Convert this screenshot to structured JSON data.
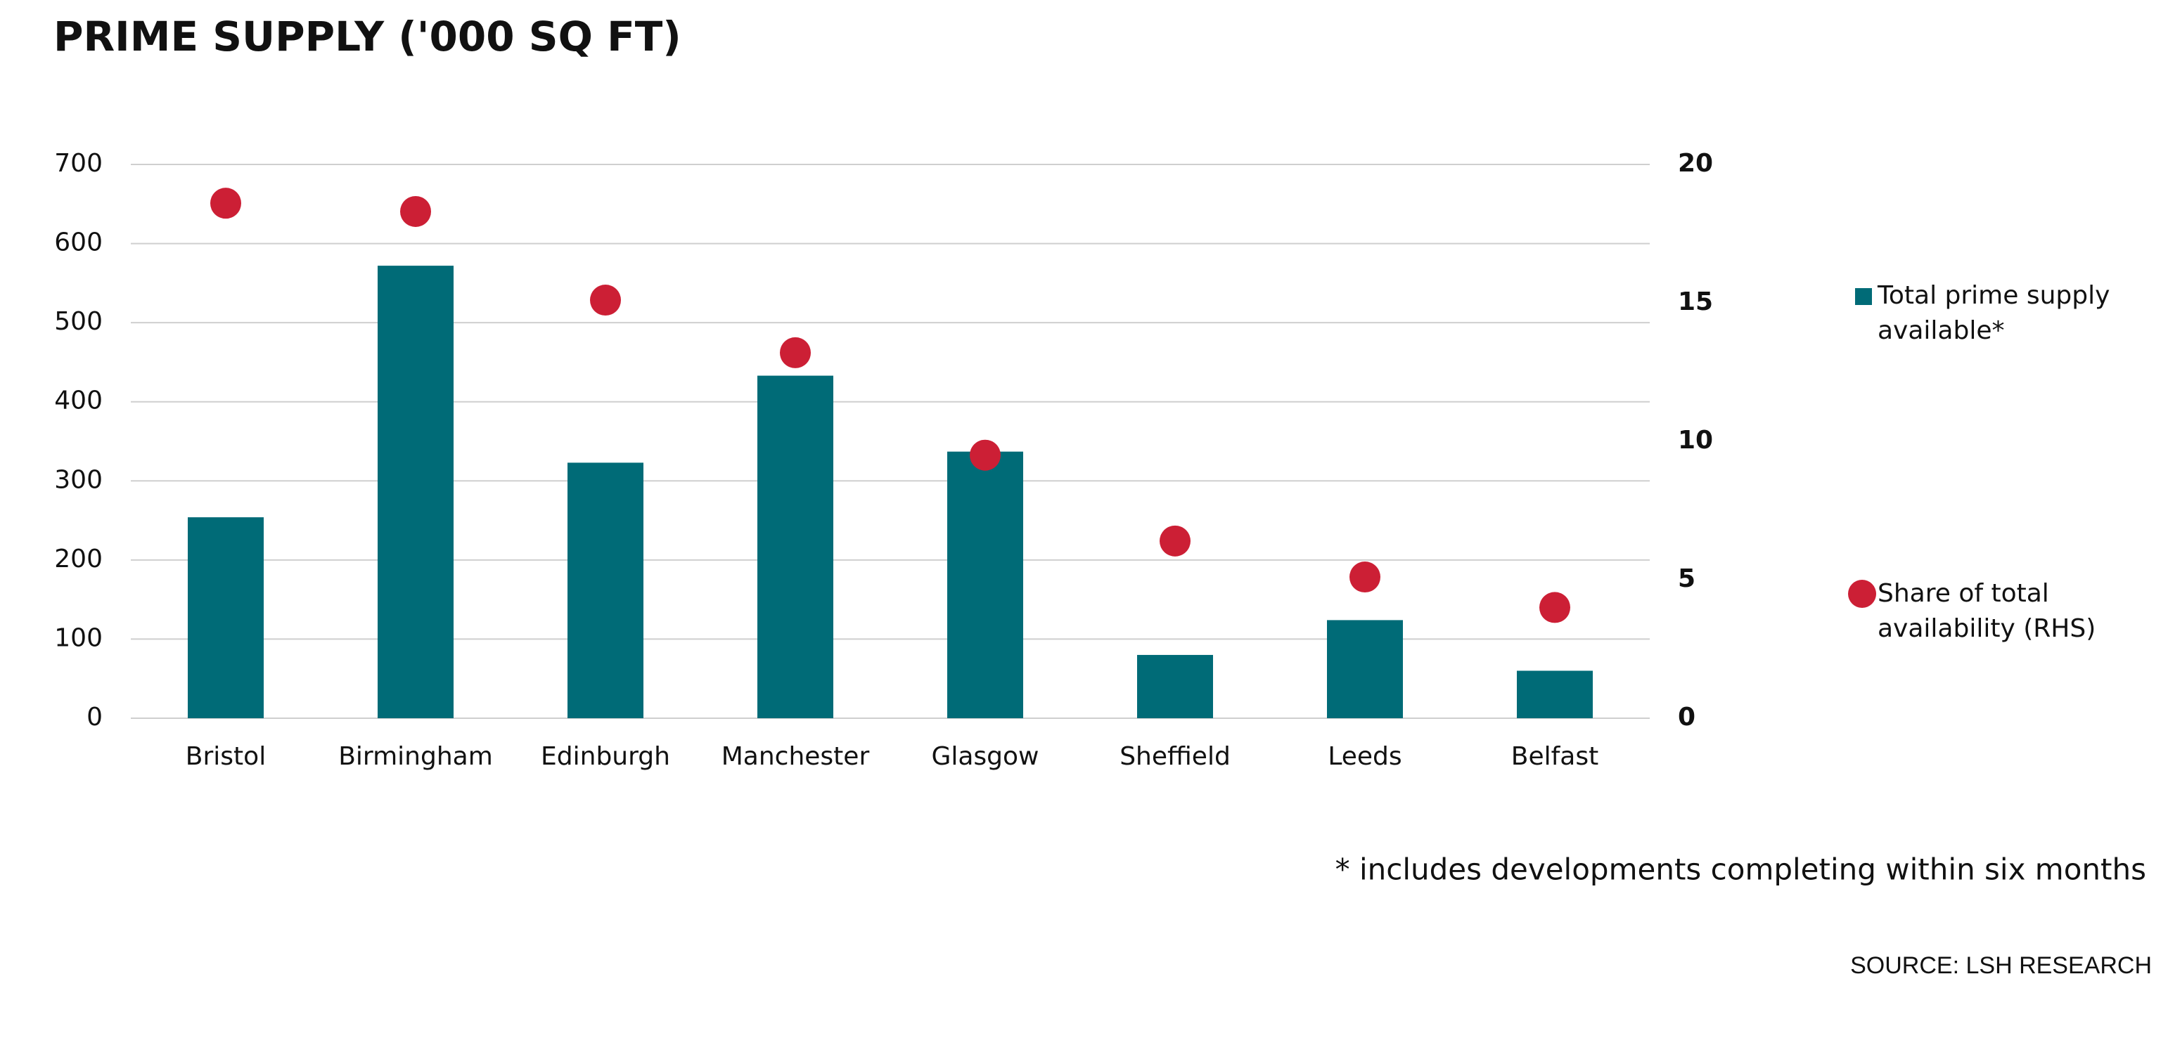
{
  "chart_data": {
    "type": "bar",
    "title": "PRIME SUPPLY ('000 SQ FT)",
    "categories": [
      "Bristol",
      "Birmingham",
      "Edinburgh",
      "Manchester",
      "Glasgow",
      "Sheffield",
      "Leeds",
      "Belfast"
    ],
    "series": [
      {
        "name": "Total prime supply available*",
        "color": "#006b77",
        "type": "bar",
        "values": [
          254,
          572,
          323,
          433,
          337,
          80,
          124,
          60
        ]
      },
      {
        "name": "Share of total availability (RHS)",
        "color": "#cc1f35",
        "type": "scatter",
        "axis": "y2",
        "values": [
          18.6,
          18.3,
          15.1,
          13.2,
          9.5,
          6.4,
          5.1,
          4.0
        ]
      }
    ],
    "ylim": [
      0,
      700
    ],
    "yticks": [
      0,
      100,
      200,
      300,
      400,
      500,
      600,
      700
    ],
    "y2lim": [
      0,
      20
    ],
    "y2ticks": [
      0,
      5,
      10,
      15,
      20
    ],
    "grid": true,
    "legend": "right",
    "footnote": "* includes developments completing within six months",
    "source": "SOURCE: LSH RESEARCH"
  }
}
